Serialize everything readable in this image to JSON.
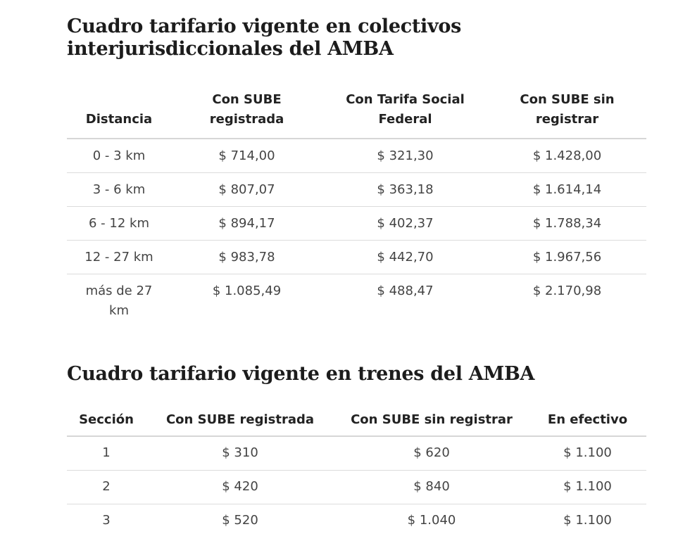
{
  "buses": {
    "title": "Cuadro tarifario vigente en colectivos interjurisdiccionales del AMBA",
    "headers": [
      "Distancia",
      "Con SUBE registrada",
      "Con Tarifa Social Federal",
      "Con SUBE sin registrar"
    ],
    "rows": [
      [
        "0 - 3 km",
        "$ 714,00",
        "$ 321,30",
        "$ 1.428,00"
      ],
      [
        "3 - 6 km",
        "$ 807,07",
        "$ 363,18",
        "$ 1.614,14"
      ],
      [
        "6 - 12 km",
        "$ 894,17",
        "$ 402,37",
        "$ 1.788,34"
      ],
      [
        "12 - 27 km",
        "$ 983,78",
        "$ 442,70",
        "$ 1.967,56"
      ],
      [
        "más de 27 km",
        "$ 1.085,49",
        "$ 488,47",
        "$ 2.170,98"
      ]
    ]
  },
  "trains": {
    "title": "Cuadro tarifario vigente en trenes del AMBA",
    "headers": [
      "Sección",
      "Con SUBE registrada",
      "Con SUBE sin registrar",
      "En efectivo"
    ],
    "rows": [
      [
        "1",
        "$ 310",
        "$ 620",
        "$ 1.100"
      ],
      [
        "2",
        "$ 420",
        "$ 840",
        "$ 1.100"
      ],
      [
        "3",
        "$ 520",
        "$ 1.040",
        "$ 1.100"
      ]
    ]
  }
}
